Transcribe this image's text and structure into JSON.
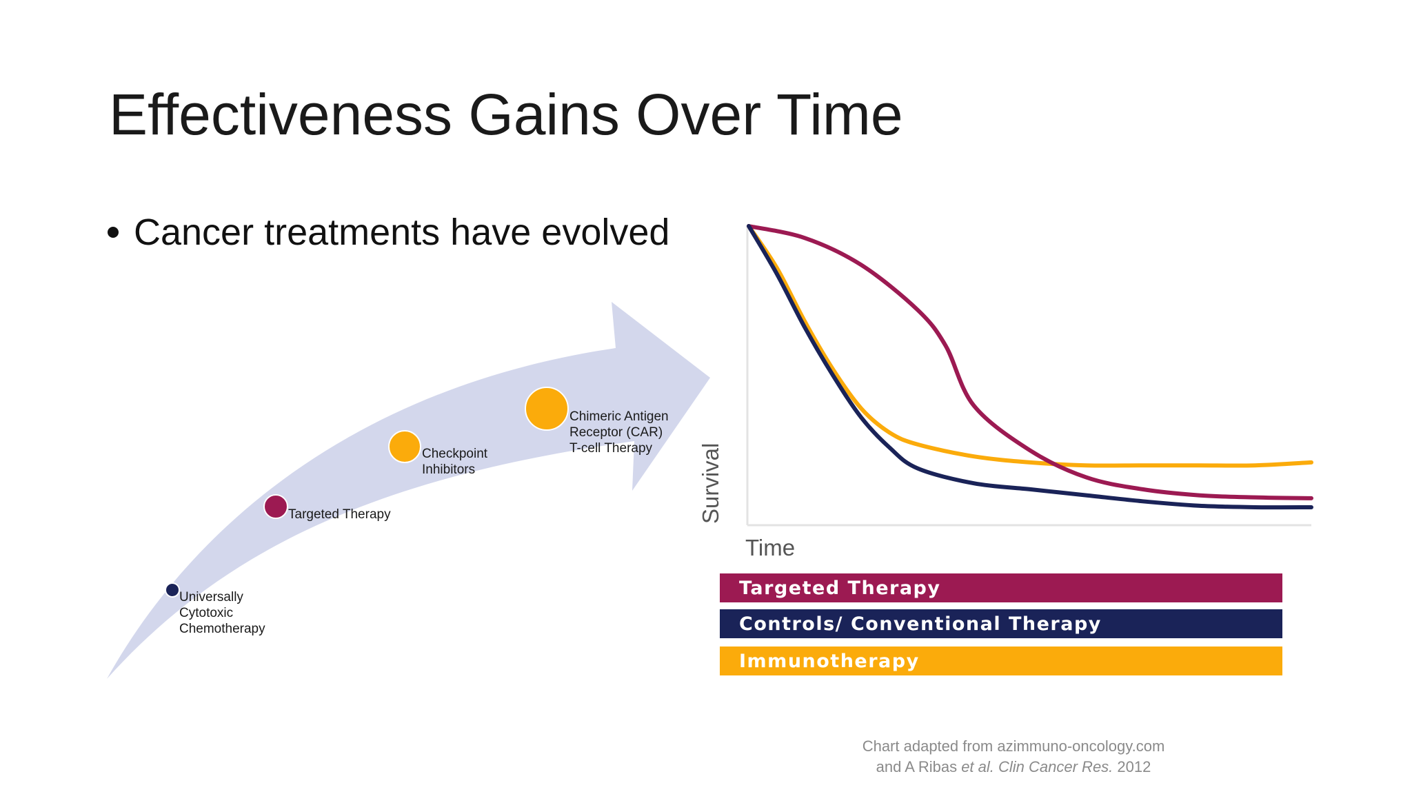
{
  "slide": {
    "title": "Effectiveness Gains Over Time",
    "bullet": "Cancer treatments have evolved"
  },
  "arrow": {
    "color": "#d3d7ec",
    "milestones": [
      {
        "label_lines": [
          "Universally",
          "Cytotoxic",
          "Chemotherapy"
        ],
        "color": "#1a2358"
      },
      {
        "label_lines": [
          "Targeted Therapy"
        ],
        "color": "#9c1a52"
      },
      {
        "label_lines": [
          "Checkpoint",
          "Inhibitors"
        ],
        "color": "#fbab0b"
      },
      {
        "label_lines": [
          "Chimeric Antigen",
          "Receptor (CAR)",
          "T-cell Therapy"
        ],
        "color": "#fbab0b"
      }
    ]
  },
  "chart_data": {
    "type": "line",
    "xlabel": "Time",
    "ylabel": "Survival",
    "series": [
      {
        "name": "Targeted Therapy",
        "color": "#9c1a52",
        "x": [
          0,
          0.1,
          0.2,
          0.3,
          0.35,
          0.4,
          0.5,
          0.6,
          0.7,
          0.8,
          0.9,
          1.0
        ],
        "y": [
          1.0,
          0.96,
          0.87,
          0.72,
          0.6,
          0.4,
          0.25,
          0.16,
          0.12,
          0.1,
          0.093,
          0.09
        ]
      },
      {
        "name": "Controls/ Conventional Therapy",
        "color": "#1a2358",
        "x": [
          0,
          0.05,
          0.1,
          0.15,
          0.2,
          0.25,
          0.3,
          0.4,
          0.5,
          0.6,
          0.7,
          0.8,
          0.9,
          1.0
        ],
        "y": [
          1.0,
          0.84,
          0.66,
          0.5,
          0.36,
          0.26,
          0.19,
          0.14,
          0.12,
          0.1,
          0.08,
          0.065,
          0.06,
          0.06
        ]
      },
      {
        "name": "Immunotherapy",
        "color": "#fbab0b",
        "x": [
          0,
          0.05,
          0.1,
          0.15,
          0.2,
          0.25,
          0.3,
          0.4,
          0.5,
          0.6,
          0.7,
          0.8,
          0.9,
          1.0
        ],
        "y": [
          1.0,
          0.86,
          0.68,
          0.52,
          0.39,
          0.31,
          0.27,
          0.23,
          0.21,
          0.2,
          0.2,
          0.2,
          0.2,
          0.21
        ]
      }
    ]
  },
  "legend": [
    {
      "label": "Targeted Therapy",
      "color": "#9c1a52"
    },
    {
      "label": "Controls/ Conventional Therapy",
      "color": "#1a2358"
    },
    {
      "label": "Immunotherapy",
      "color": "#fbab0b"
    }
  ],
  "source": {
    "line1": "Chart adapted from azimmuno-oncology.com",
    "line2_pre": "and A Ribas ",
    "line2_etal": "et al.",
    "line2_journal": "Clin Cancer Res.",
    "line2_year": " 2012"
  }
}
